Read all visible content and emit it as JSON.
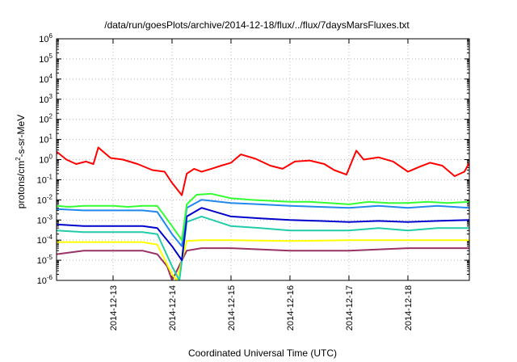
{
  "chart_data": {
    "type": "line",
    "title": "/data/run/goesPlots/archive/2014-12-18/flux/../flux/7daysMarsFluxes.txt",
    "xlabel": "Coordinated Universal Time (UTC)",
    "ylabel_base": "protons/cm",
    "ylabel_sup": "2",
    "ylabel_rest": "-s-sr-MeV",
    "y_scale": "log",
    "ylim": [
      -6,
      6
    ],
    "y_ticks": [
      {
        "base": "10",
        "exp": "6"
      },
      {
        "base": "10",
        "exp": "5"
      },
      {
        "base": "10",
        "exp": "4"
      },
      {
        "base": "10",
        "exp": "3"
      },
      {
        "base": "10",
        "exp": "2"
      },
      {
        "base": "10",
        "exp": "1"
      },
      {
        "base": "10",
        "exp": "0"
      },
      {
        "base": "10",
        "exp": "-1"
      },
      {
        "base": "10",
        "exp": "-2"
      },
      {
        "base": "10",
        "exp": "-3"
      },
      {
        "base": "10",
        "exp": "-4"
      },
      {
        "base": "10",
        "exp": "-5"
      },
      {
        "base": "10",
        "exp": "-6"
      }
    ],
    "x_start": "2014-12-12T01:00",
    "x_end": "2014-12-19T01:00",
    "x_ticks": [
      "2014-12-13",
      "2014-12-14",
      "2014-12-15",
      "2014-12-16",
      "2014-12-17",
      "2014-12-18"
    ],
    "grid": true,
    "legend": "none",
    "series": [
      {
        "color": "#ff0000",
        "points": [
          [
            "2014-12-12T01:00",
            2.5
          ],
          [
            "2014-12-12T05:00",
            1.0
          ],
          [
            "2014-12-12T09:00",
            0.6
          ],
          [
            "2014-12-12T13:00",
            0.8
          ],
          [
            "2014-12-12T16:00",
            0.6
          ],
          [
            "2014-12-12T18:00",
            4.0
          ],
          [
            "2014-12-12T23:00",
            1.2
          ],
          [
            "2014-12-13T04:00",
            1.0
          ],
          [
            "2014-12-13T10:00",
            0.6
          ],
          [
            "2014-12-13T16:00",
            0.3
          ],
          [
            "2014-12-13T21:00",
            0.25
          ],
          [
            "2014-12-14T00:00",
            0.07
          ],
          [
            "2014-12-14T04:00",
            0.017
          ],
          [
            "2014-12-14T06:00",
            0.2
          ],
          [
            "2014-12-14T09:00",
            0.35
          ],
          [
            "2014-12-14T12:00",
            0.25
          ],
          [
            "2014-12-14T16:00",
            0.35
          ],
          [
            "2014-12-14T20:00",
            0.5
          ],
          [
            "2014-12-15T00:00",
            0.7
          ],
          [
            "2014-12-15T04:00",
            1.8
          ],
          [
            "2014-12-15T10:00",
            1.1
          ],
          [
            "2014-12-15T16:00",
            0.5
          ],
          [
            "2014-12-15T21:00",
            0.35
          ],
          [
            "2014-12-16T02:00",
            0.8
          ],
          [
            "2014-12-16T08:00",
            0.9
          ],
          [
            "2014-12-16T14:00",
            0.6
          ],
          [
            "2014-12-16T18:00",
            0.3
          ],
          [
            "2014-12-16T23:00",
            0.18
          ],
          [
            "2014-12-17T03:00",
            2.8
          ],
          [
            "2014-12-17T06:00",
            1.0
          ],
          [
            "2014-12-17T12:00",
            1.3
          ],
          [
            "2014-12-17T18:00",
            0.8
          ],
          [
            "2014-12-18T00:00",
            0.25
          ],
          [
            "2014-12-18T05:00",
            0.45
          ],
          [
            "2014-12-18T09:00",
            0.7
          ],
          [
            "2014-12-18T14:00",
            0.5
          ],
          [
            "2014-12-18T19:00",
            0.15
          ],
          [
            "2014-12-18T23:00",
            0.25
          ],
          [
            "2014-12-19T01:00",
            0.7
          ]
        ]
      },
      {
        "color": "#33ff33",
        "points": [
          [
            "2014-12-12T01:00",
            0.005
          ],
          [
            "2014-12-12T06:00",
            0.0045
          ],
          [
            "2014-12-12T12:00",
            0.005
          ],
          [
            "2014-12-12T18:00",
            0.005
          ],
          [
            "2014-12-13T00:00",
            0.005
          ],
          [
            "2014-12-13T06:00",
            0.0045
          ],
          [
            "2014-12-13T12:00",
            0.005
          ],
          [
            "2014-12-13T18:00",
            0.005
          ],
          [
            "2014-12-14T00:00",
            0.0005
          ],
          [
            "2014-12-14T04:00",
            0.0001
          ],
          [
            "2014-12-14T06:00",
            0.006
          ],
          [
            "2014-12-14T10:00",
            0.018
          ],
          [
            "2014-12-14T16:00",
            0.02
          ],
          [
            "2014-12-15T00:00",
            0.012
          ],
          [
            "2014-12-15T08:00",
            0.01
          ],
          [
            "2014-12-15T16:00",
            0.009
          ],
          [
            "2014-12-16T00:00",
            0.008
          ],
          [
            "2014-12-16T08:00",
            0.008
          ],
          [
            "2014-12-16T16:00",
            0.007
          ],
          [
            "2014-12-17T00:00",
            0.006
          ],
          [
            "2014-12-17T08:00",
            0.008
          ],
          [
            "2014-12-17T16:00",
            0.007
          ],
          [
            "2014-12-18T00:00",
            0.007
          ],
          [
            "2014-12-18T08:00",
            0.008
          ],
          [
            "2014-12-18T16:00",
            0.007
          ],
          [
            "2014-12-19T01:00",
            0.008
          ]
        ]
      },
      {
        "color": "#2288ee",
        "points": [
          [
            "2014-12-12T01:00",
            0.0035
          ],
          [
            "2014-12-12T12:00",
            0.003
          ],
          [
            "2014-12-13T00:00",
            0.003
          ],
          [
            "2014-12-13T12:00",
            0.003
          ],
          [
            "2014-12-13T18:00",
            0.0025
          ],
          [
            "2014-12-14T00:00",
            0.0002
          ],
          [
            "2014-12-14T04:00",
            5e-05
          ],
          [
            "2014-12-14T06:00",
            0.004
          ],
          [
            "2014-12-14T12:00",
            0.01
          ],
          [
            "2014-12-15T00:00",
            0.007
          ],
          [
            "2014-12-15T12:00",
            0.006
          ],
          [
            "2014-12-16T00:00",
            0.005
          ],
          [
            "2014-12-16T12:00",
            0.0045
          ],
          [
            "2014-12-17T00:00",
            0.004
          ],
          [
            "2014-12-17T12:00",
            0.005
          ],
          [
            "2014-12-18T00:00",
            0.004
          ],
          [
            "2014-12-18T12:00",
            0.005
          ],
          [
            "2014-12-19T01:00",
            0.004
          ]
        ]
      },
      {
        "color": "#0000cc",
        "points": [
          [
            "2014-12-12T01:00",
            0.0006
          ],
          [
            "2014-12-12T12:00",
            0.0005
          ],
          [
            "2014-12-13T00:00",
            0.0005
          ],
          [
            "2014-12-13T12:00",
            0.0005
          ],
          [
            "2014-12-13T18:00",
            0.0004
          ],
          [
            "2014-12-14T00:00",
            5e-05
          ],
          [
            "2014-12-14T04:00",
            1e-05
          ],
          [
            "2014-12-14T06:00",
            0.0015
          ],
          [
            "2014-12-14T12:00",
            0.004
          ],
          [
            "2014-12-15T00:00",
            0.0015
          ],
          [
            "2014-12-15T12:00",
            0.0012
          ],
          [
            "2014-12-16T00:00",
            0.001
          ],
          [
            "2014-12-16T12:00",
            0.0009
          ],
          [
            "2014-12-17T00:00",
            0.0008
          ],
          [
            "2014-12-17T12:00",
            0.0009
          ],
          [
            "2014-12-18T00:00",
            0.0008
          ],
          [
            "2014-12-18T12:00",
            0.0009
          ],
          [
            "2014-12-19T01:00",
            0.001
          ]
        ]
      },
      {
        "color": "#22ccaa",
        "points": [
          [
            "2014-12-12T01:00",
            0.0003
          ],
          [
            "2014-12-12T12:00",
            0.00025
          ],
          [
            "2014-12-13T00:00",
            0.00025
          ],
          [
            "2014-12-13T12:00",
            0.00025
          ],
          [
            "2014-12-13T18:00",
            0.0002
          ],
          [
            "2014-12-14T00:00",
            5e-06
          ],
          [
            "2014-12-14T03:00",
            1e-06
          ],
          [
            "2014-12-14T06:00",
            0.0008
          ],
          [
            "2014-12-14T12:00",
            0.0015
          ],
          [
            "2014-12-15T00:00",
            0.0005
          ],
          [
            "2014-12-15T12:00",
            0.0004
          ],
          [
            "2014-12-16T00:00",
            0.0003
          ],
          [
            "2014-12-16T12:00",
            0.0003
          ],
          [
            "2014-12-17T00:00",
            0.0003
          ],
          [
            "2014-12-17T12:00",
            0.0004
          ],
          [
            "2014-12-18T00:00",
            0.0003
          ],
          [
            "2014-12-18T12:00",
            0.0004
          ],
          [
            "2014-12-19T01:00",
            0.0004
          ]
        ]
      },
      {
        "color": "#ffff00",
        "points": [
          [
            "2014-12-12T01:00",
            8e-05
          ],
          [
            "2014-12-12T12:00",
            8e-05
          ],
          [
            "2014-12-13T00:00",
            8e-05
          ],
          [
            "2014-12-13T12:00",
            8e-05
          ],
          [
            "2014-12-13T18:00",
            6e-05
          ],
          [
            "2014-12-14T00:00",
            2e-06
          ],
          [
            "2014-12-14T02:00",
            1e-06
          ],
          [
            "2014-12-14T06:00",
            9e-05
          ],
          [
            "2014-12-14T12:00",
            0.0001
          ],
          [
            "2014-12-15T00:00",
            0.0001
          ],
          [
            "2014-12-16T00:00",
            9e-05
          ],
          [
            "2014-12-17T00:00",
            0.0001
          ],
          [
            "2014-12-18T00:00",
            0.0001
          ],
          [
            "2014-12-19T01:00",
            0.0001
          ]
        ]
      },
      {
        "color": "#993366",
        "points": [
          [
            "2014-12-12T01:00",
            2e-05
          ],
          [
            "2014-12-12T12:00",
            3e-05
          ],
          [
            "2014-12-13T00:00",
            3e-05
          ],
          [
            "2014-12-13T12:00",
            3e-05
          ],
          [
            "2014-12-13T18:00",
            2e-05
          ],
          [
            "2014-12-13T22:00",
            5e-06
          ],
          [
            "2014-12-14T00:00",
            1e-06
          ],
          [
            "2014-12-14T06:00",
            3e-05
          ],
          [
            "2014-12-14T12:00",
            4e-05
          ],
          [
            "2014-12-15T00:00",
            4e-05
          ],
          [
            "2014-12-16T00:00",
            3e-05
          ],
          [
            "2014-12-17T00:00",
            3e-05
          ],
          [
            "2014-12-18T00:00",
            4e-05
          ],
          [
            "2014-12-19T01:00",
            4e-05
          ]
        ]
      }
    ]
  }
}
